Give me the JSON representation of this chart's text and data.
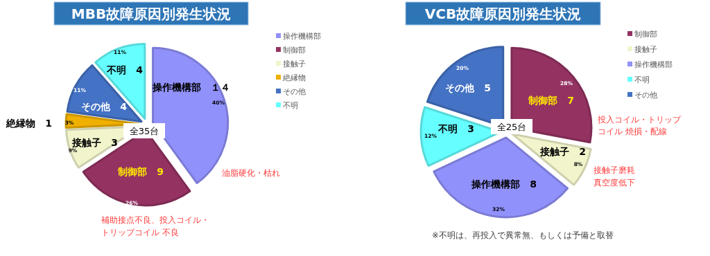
{
  "chart_data": [
    {
      "type": "pie",
      "title": "MBB故障原因別発生状況",
      "categories": [
        "操作機構部",
        "制御部",
        "接触子",
        "絶縁物",
        "その他",
        "不明"
      ],
      "values": [
        14,
        9,
        3,
        1,
        4,
        4
      ],
      "colors": [
        "#9191fb",
        "#943262",
        "#f2f5cc",
        "#f0b000",
        "#4472c4",
        "#66ffff"
      ],
      "value_labels": [
        "操作機構部　１４",
        "制御部　9",
        "接触子　3",
        "絶縁物　1",
        "その他　4",
        "不明　4"
      ],
      "legend": "right",
      "annotations": [
        {
          "text": "40%",
          "x": "操作機構部"
        },
        {
          "text": "26%",
          "x": "制御部"
        },
        {
          "text": "9%",
          "x": "接触子"
        },
        {
          "text": "3%",
          "x": "絶縁物"
        },
        {
          "text": "11%",
          "x": "その他"
        },
        {
          "text": "11%",
          "x": "不明"
        },
        "全35台",
        {
          "text": "油脂硬化・枯れ",
          "x": "操作機構部"
        },
        {
          "text": "補助接点不良、投入コイル・",
          "x": "制御部"
        },
        {
          "text": "トリップコイル 不良",
          "x": "制御部"
        }
      ]
    },
    {
      "type": "pie",
      "title": "VCB故障原因別発生状況",
      "categories": [
        "制御部",
        "接触子",
        "操作機構部",
        "不明",
        "その他"
      ],
      "values": [
        7,
        2,
        8,
        3,
        5
      ],
      "colors": [
        "#943262",
        "#f2f5cc",
        "#9191fb",
        "#66ffff",
        "#4472c4"
      ],
      "value_labels": [
        "制御部　7",
        "接触子　2",
        "操作機構部　8",
        "不明　3",
        "その他　5"
      ],
      "legend": "right",
      "annotations": [
        {
          "text": "28%",
          "x": "制御部"
        },
        {
          "text": "8%",
          "x": "接触子"
        },
        {
          "text": "32%",
          "x": "操作機構部"
        },
        {
          "text": "12%",
          "x": "不明"
        },
        {
          "text": "20%",
          "x": "その他"
        },
        "全25台",
        {
          "text": "投入コイル・トリップ",
          "x": "制御部"
        },
        {
          "text": "コイル 焼損・配線",
          "x": "制御部"
        },
        {
          "text": "接触子磨耗",
          "x": "接触子"
        },
        {
          "text": "真空度低下",
          "x": "接触子"
        },
        "※不明は、再投入で異常無、もしくは予備と取替"
      ]
    }
  ]
}
